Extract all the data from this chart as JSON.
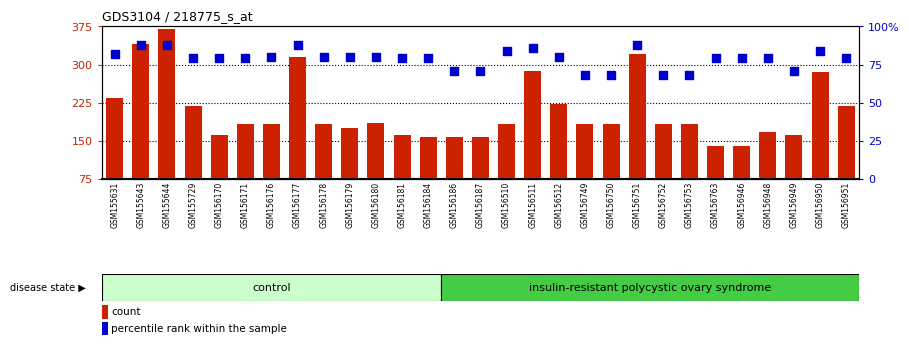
{
  "title": "GDS3104 / 218775_s_at",
  "samples": [
    "GSM155631",
    "GSM155643",
    "GSM155644",
    "GSM155729",
    "GSM156170",
    "GSM156171",
    "GSM156176",
    "GSM156177",
    "GSM156178",
    "GSM156179",
    "GSM156180",
    "GSM156181",
    "GSM156184",
    "GSM156186",
    "GSM156187",
    "GSM156510",
    "GSM156511",
    "GSM156512",
    "GSM156749",
    "GSM156750",
    "GSM156751",
    "GSM156752",
    "GSM156753",
    "GSM156763",
    "GSM156946",
    "GSM156948",
    "GSM156949",
    "GSM156950",
    "GSM156951"
  ],
  "bar_values": [
    235,
    340,
    370,
    218,
    162,
    183,
    183,
    315,
    183,
    175,
    185,
    162,
    158,
    158,
    158,
    182,
    288,
    222,
    183,
    183,
    320,
    183,
    183,
    140,
    140,
    168,
    162,
    285,
    218
  ],
  "dot_values_pct": [
    82,
    88,
    88,
    79,
    79,
    79,
    80,
    88,
    80,
    80,
    80,
    79,
    79,
    71,
    71,
    84,
    86,
    80,
    68,
    68,
    88,
    68,
    68,
    79,
    79,
    79,
    71,
    84,
    79
  ],
  "control_count": 13,
  "disease_label": "insulin-resistant polycystic ovary syndrome",
  "control_label": "control",
  "disease_state_label": "disease state",
  "legend_count": "count",
  "legend_pct": "percentile rank within the sample",
  "bar_color": "#cc2200",
  "dot_color": "#0000cc",
  "control_bg": "#ccffcc",
  "disease_bg": "#44cc44",
  "ylim_left": [
    75,
    375
  ],
  "yticks_left": [
    75,
    150,
    225,
    300,
    375
  ],
  "yticks_right_vals": [
    0,
    25,
    50,
    75,
    100
  ],
  "yticks_right_labels": [
    "0",
    "25",
    "50",
    "75",
    "100%"
  ],
  "hlines": [
    150,
    225,
    300
  ],
  "dot_size": 28,
  "bar_color_dark": "#cc2200",
  "gray_bg": "#c8c8c8"
}
